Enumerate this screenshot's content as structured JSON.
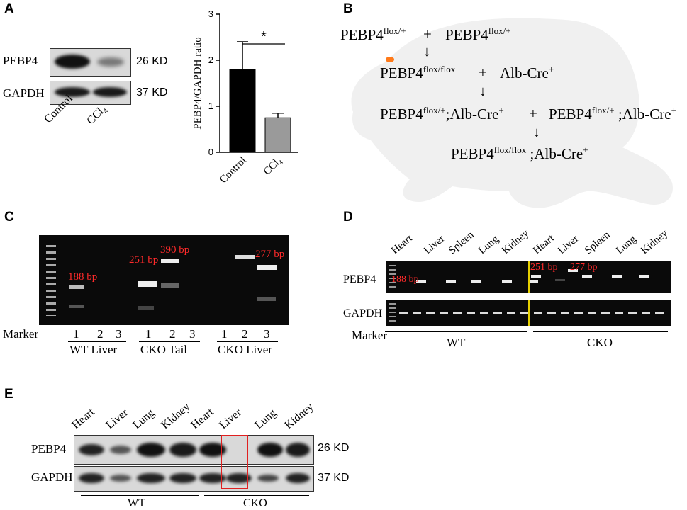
{
  "panels": {
    "A": {
      "letter": "A",
      "blot_rows": [
        "PEBP4",
        "GAPDH"
      ],
      "blot_sizes": [
        "26 KD",
        "37 KD"
      ],
      "blot_lanes": [
        "Control",
        "CCl₄"
      ],
      "significance": "*",
      "chart_data": {
        "type": "bar",
        "categories": [
          "Control",
          "CCl₄"
        ],
        "values": [
          1.8,
          0.75
        ],
        "errors": [
          0.6,
          0.1
        ],
        "ylabel": "PEBP4/GAPDH ratio",
        "xlabel": "",
        "ylim": [
          0,
          3
        ],
        "yticks": [
          "0",
          "1",
          "2",
          "3"
        ],
        "bar_colors": [
          "#000000",
          "#9a9a9a"
        ]
      }
    },
    "B": {
      "letter": "B",
      "gene": "PEBP4",
      "cre": "Alb-Cre",
      "flox_het": "flox/+",
      "flox_hom": "flox/flox",
      "plus_sign": "+",
      "sup_plus": "+",
      "sep": ";",
      "arrow": "↓"
    },
    "C": {
      "letter": "C",
      "labels": [
        "188 bp",
        "251 bp",
        "390 bp",
        "277 bp"
      ],
      "marker": "Marker",
      "lane_nums": [
        "1",
        "2",
        "3"
      ],
      "groups": [
        "WT Liver",
        "CKO Tail",
        "CKO Liver"
      ]
    },
    "D": {
      "letter": "D",
      "tissues": [
        "Heart",
        "Liver",
        "Spleen",
        "Lung",
        "Kidney",
        "Heart",
        "Liver",
        "Spleen",
        "Lung",
        "Kidney"
      ],
      "rows": [
        "PEBP4",
        "GAPDH"
      ],
      "labels": [
        "188 bp",
        "251 bp",
        "277 bp"
      ],
      "marker": "Marker",
      "groups": [
        "WT",
        "CKO"
      ]
    },
    "E": {
      "letter": "E",
      "tissues": [
        "Heart",
        "Liver",
        "Lung",
        "Kidney",
        "Heart",
        "Liver",
        "Lung",
        "Kidney"
      ],
      "rows": [
        "PEBP4",
        "GAPDH"
      ],
      "sizes": [
        "26 KD",
        "37 KD"
      ],
      "groups": [
        "WT",
        "CKO"
      ]
    }
  }
}
